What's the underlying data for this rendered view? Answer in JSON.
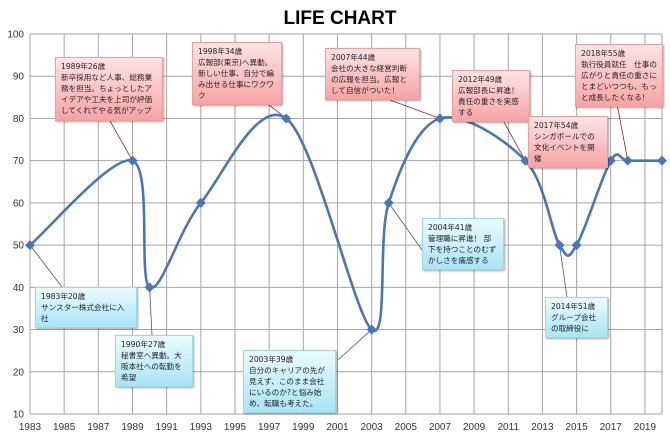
{
  "chart_data": {
    "type": "line",
    "title": "LIFE CHART",
    "xlabel": "",
    "ylabel": "",
    "xlim": [
      1983,
      2020
    ],
    "ylim": [
      10,
      100
    ],
    "yticks": [
      10,
      20,
      30,
      40,
      50,
      60,
      70,
      80,
      90,
      100
    ],
    "xticks": [
      1983,
      1985,
      1987,
      1989,
      1991,
      1993,
      1995,
      1997,
      1999,
      2001,
      2003,
      2005,
      2007,
      2009,
      2011,
      2013,
      2015,
      2017,
      2019
    ],
    "grid": true,
    "line_color": "#4a76b5",
    "x": [
      1983,
      1989,
      1990,
      1993,
      1998,
      2003,
      2004,
      2007,
      2012,
      2014,
      2015,
      2017,
      2018,
      2020
    ],
    "y": [
      50,
      70,
      40,
      60,
      80,
      30,
      60,
      80,
      70,
      50,
      50,
      70,
      70,
      70
    ],
    "annotations": [
      {
        "year": 1983,
        "style": "blue",
        "head": "1983年20歳",
        "text": "サンスター株式会社に入社"
      },
      {
        "year": 1989,
        "style": "pink",
        "head": "1989年26歳",
        "text": "新卒採用など人事、総務業務を担当。ちょっとしたアイデアや工夫を上司が評価してくれてやる気がアップ"
      },
      {
        "year": 1990,
        "style": "blue",
        "head": "1990年27歳",
        "text": "秘書室へ異動。大阪本社への転勤を希望"
      },
      {
        "year": 1998,
        "style": "pink",
        "head": "1998年34歳",
        "text": "広報部(東京)へ異動。新しい仕事、自分で編み出せる仕事にワクワク"
      },
      {
        "year": 2003,
        "style": "blue",
        "head": "2003年39歳",
        "text": "自分のキャリアの先が見えず、このまま会社にいるのか?と悩み始め、転職も考えた。"
      },
      {
        "year": 2004,
        "style": "blue",
        "head": "2004年41歳",
        "text": "管理職に昇進！ 部下を持つことのむずかしさを痛感する"
      },
      {
        "year": 2007,
        "style": "pink",
        "head": "2007年44歳",
        "text": "会社の大きな経営判断の広報を担当。広報として自信がついた！"
      },
      {
        "year": 2012,
        "style": "pink",
        "head": "2012年49歳",
        "text": "広報部長に昇進！ 責任の重さを実感する"
      },
      {
        "year": 2014,
        "style": "blue",
        "head": "2014年51歳",
        "text": "グループ会社の取締役に"
      },
      {
        "year": 2017,
        "style": "pink",
        "head": "2017年54歳",
        "text": "シンガポールでの文化イベントを開催"
      },
      {
        "year": 2018,
        "style": "pink",
        "head": "2018年55歳",
        "text": "執行役員就任　仕事の広がりと責任の重さにとまどいつつも、もっと成長したくなる！"
      }
    ]
  }
}
